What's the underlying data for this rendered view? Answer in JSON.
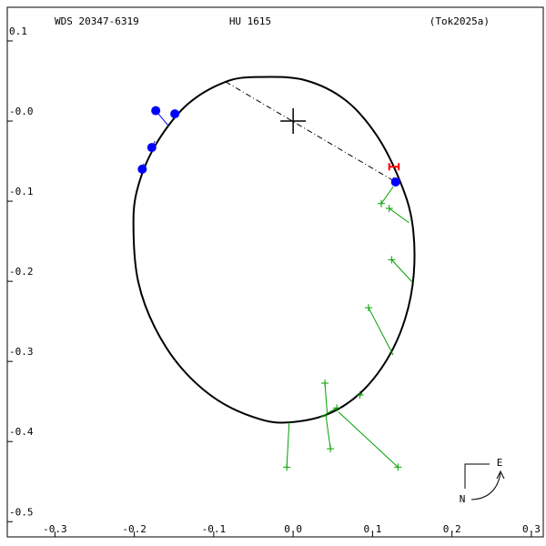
{
  "chart_data": {
    "type": "orbit",
    "title_left": "WDS 20347-6319",
    "title_center": "HU 1615",
    "title_right": "(Tok2025a)",
    "xlim": [
      -0.36,
      0.315
    ],
    "ylim": [
      -0.519,
      0.142
    ],
    "xticks": [
      -0.3,
      -0.2,
      -0.1,
      {
        "value": 0,
        "label": "0.0"
      },
      0.1,
      0.2,
      0.3
    ],
    "yticks": [
      0.1,
      {
        "value": 0,
        "label": "-0.0"
      },
      -0.1,
      -0.2,
      -0.3,
      -0.4,
      -0.5
    ],
    "orbit": {
      "color": "#000000",
      "x": [
        -0.042,
        -0.085,
        -0.134,
        -0.174,
        -0.197,
        -0.201,
        -0.195,
        -0.174,
        -0.14,
        -0.094,
        -0.042,
        -0.005,
        0.043,
        0.084,
        0.118,
        0.141,
        0.152,
        0.15,
        0.135,
        0.106,
        0.066,
        0.015
      ],
      "y": [
        0.055,
        0.049,
        0.02,
        -0.031,
        -0.088,
        -0.139,
        -0.201,
        -0.258,
        -0.309,
        -0.349,
        -0.372,
        -0.376,
        -0.366,
        -0.34,
        -0.298,
        -0.247,
        -0.19,
        -0.127,
        -0.076,
        -0.019,
        0.026,
        0.051
      ]
    },
    "node_line": {
      "x": [
        -0.085,
        0.129
      ],
      "y": [
        0.049,
        -0.076
      ]
    },
    "series": [
      {
        "color": "#0000ff",
        "marker": "circle",
        "x": [
          -0.173,
          -0.149,
          -0.178,
          -0.19,
          0.129
        ],
        "y": [
          0.013,
          0.009,
          -0.033,
          -0.06,
          -0.076
        ],
        "fit_x": [
          -0.157,
          -0.151,
          -0.174,
          -0.188,
          0.126
        ],
        "fit_y": [
          -0.006,
          0.003,
          -0.025,
          -0.053,
          -0.07
        ]
      },
      {
        "color": "#00a000",
        "marker": "plus",
        "x": [
          0.111,
          0.121,
          0.124,
          0.095,
          0.084,
          0.04,
          0.047,
          0.055,
          0.132,
          -0.008
        ],
        "y": [
          -0.103,
          -0.109,
          -0.173,
          -0.233,
          -0.342,
          -0.327,
          -0.409,
          -0.358,
          -0.432,
          -0.432
        ],
        "fit_x": [
          0.126,
          0.146,
          0.15,
          0.126,
          0.087,
          0.043,
          0.041,
          0.034,
          0.057,
          -0.005
        ],
        "fit_y": [
          -0.082,
          -0.127,
          -0.201,
          -0.292,
          -0.34,
          -0.366,
          -0.366,
          -0.37,
          -0.363,
          -0.376
        ]
      }
    ],
    "error_point": {
      "x": 0.127,
      "y": -0.057,
      "xerr": 0.006,
      "color": "#ff0000"
    },
    "compass": {
      "east": "E",
      "north": "N"
    }
  }
}
